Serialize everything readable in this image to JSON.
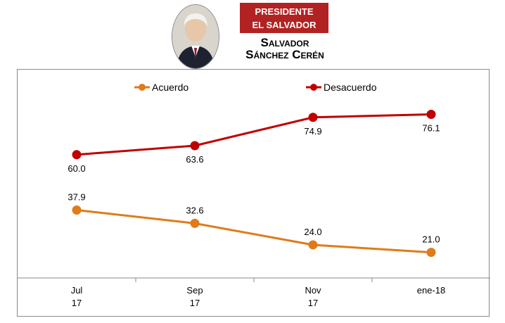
{
  "header": {
    "badge_line1": "PRESIDENTE",
    "badge_line2": "EL SALVADOR",
    "name_line1": "Salvador",
    "name_line2": "Sánchez Cerén"
  },
  "chart_data": {
    "type": "line",
    "categories": [
      "Jul\n17",
      "Sep\n17",
      "Nov\n17",
      "ene-18"
    ],
    "series": [
      {
        "name": "Desacuerdo",
        "color": "#c00000",
        "values": [
          60.0,
          63.6,
          74.9,
          76.1
        ]
      },
      {
        "name": "Acuerdo",
        "color": "#e07b1a",
        "values": [
          37.9,
          32.6,
          24.0,
          21.0
        ]
      }
    ],
    "legend_position": "top-center",
    "grid": false
  }
}
